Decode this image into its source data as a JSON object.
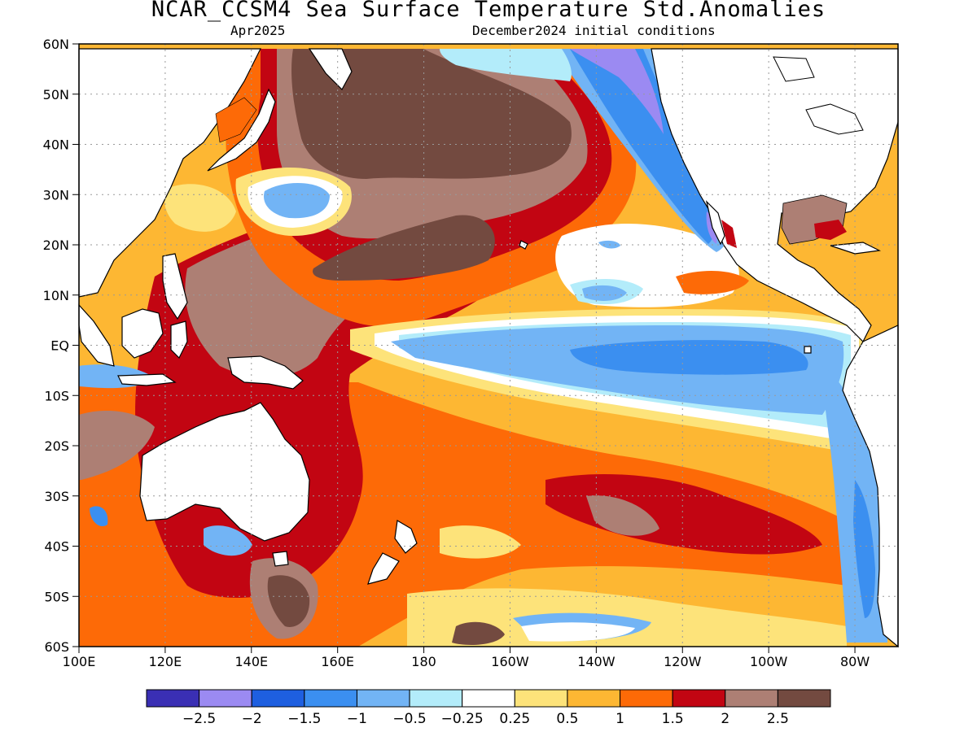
{
  "title": "NCAR_CCSM4 Sea Surface Temperature Std.Anomalies",
  "subtitle_left": "Apr2025",
  "subtitle_right": "December2024 initial conditions",
  "map": {
    "lon_range": [
      "100E",
      "70W"
    ],
    "lat_range": [
      "60S",
      "60N"
    ],
    "lat_ticks": [
      "60N",
      "50N",
      "40N",
      "30N",
      "20N",
      "10N",
      "EQ",
      "10S",
      "20S",
      "30S",
      "40S",
      "50S",
      "60S"
    ],
    "lon_ticks": [
      "100E",
      "120E",
      "140E",
      "160E",
      "180",
      "160W",
      "140W",
      "120W",
      "100W",
      "80W"
    ],
    "gridlines": "dotted"
  },
  "colorbar": {
    "colors": [
      "#3a2fb4",
      "#9b8af2",
      "#1e5fe0",
      "#3b8ff0",
      "#72b4f5",
      "#b3ecfa",
      "#ffffff",
      "#fde37a",
      "#fdb733",
      "#fd6a07",
      "#c20512",
      "#ad7f74",
      "#734a40"
    ],
    "labels": [
      "-2.5",
      "-2",
      "-1.5",
      "-1",
      "-0.5",
      "-0.25",
      "0.25",
      "0.5",
      "1",
      "1.5",
      "2",
      "2.5"
    ]
  },
  "legend": {
    "c_xn25": "#3a2fb4",
    "c_xn2": "#9b8af2",
    "c_xn15": "#1e5fe0",
    "c_xn1": "#3b8ff0",
    "c_xn05": "#72b4f5",
    "c_xn025": "#b3ecfa",
    "c_x0": "#ffffff",
    "c_x025": "#fde37a",
    "c_x05": "#fdb733",
    "c_x1": "#fd6a07",
    "c_x15": "#c20512",
    "c_x2": "#ad7f74",
    "c_x25": "#734a40"
  }
}
